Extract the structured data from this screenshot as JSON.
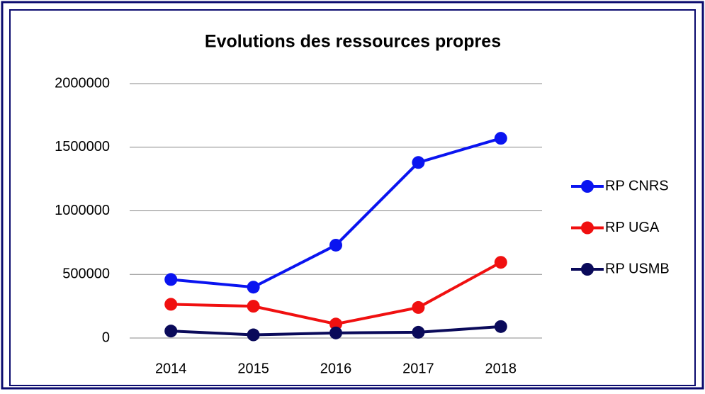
{
  "chart_data": {
    "type": "line",
    "title": "Evolutions des ressources propres",
    "categories": [
      "2014",
      "2015",
      "2016",
      "2017",
      "2018"
    ],
    "series": [
      {
        "name": "RP CNRS",
        "color": "#0a14f0",
        "values": [
          460000,
          400000,
          730000,
          1380000,
          1570000
        ]
      },
      {
        "name": "RP UGA",
        "color": "#f01010",
        "values": [
          265000,
          250000,
          110000,
          240000,
          595000
        ]
      },
      {
        "name": "RP USMB",
        "color": "#0a0a5a",
        "values": [
          55000,
          25000,
          40000,
          45000,
          90000
        ]
      }
    ],
    "ylim": [
      0,
      2000000
    ],
    "yticks": [
      0,
      500000,
      1000000,
      1500000,
      2000000
    ],
    "grid": true,
    "legend": "right"
  }
}
